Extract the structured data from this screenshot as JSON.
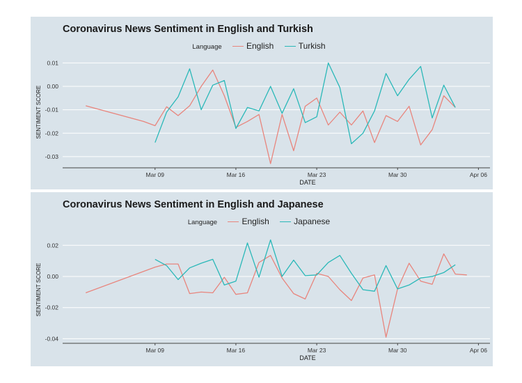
{
  "chart_data": [
    {
      "type": "line",
      "title": "Coronavirus News Sentiment in English and Turkish",
      "legend_title": "Language",
      "xlabel": "DATE",
      "ylabel": "SENTIMENT SCORE",
      "x_ticks": [
        "Mar 09",
        "Mar 16",
        "Mar 23",
        "Mar 30",
        "Apr 06"
      ],
      "y_ticks": [
        "0.01",
        "0.00",
        "-0.01",
        "-0.02",
        "-0.03"
      ],
      "ylim": [
        -0.0345,
        0.0125
      ],
      "xlim": [
        "2020-03-01",
        "2020-04-07"
      ],
      "legend_placement": "top-center",
      "grid": true,
      "series": [
        {
          "name": "English",
          "color": "#e8857d",
          "points": [
            [
              "2020-03-03",
              -0.0083
            ],
            [
              "2020-03-08",
              -0.015
            ],
            [
              "2020-03-09",
              -0.0168
            ],
            [
              "2020-03-10",
              -0.0087
            ],
            [
              "2020-03-11",
              -0.0125
            ],
            [
              "2020-03-12",
              -0.0083
            ],
            [
              "2020-03-13",
              0.0
            ],
            [
              "2020-03-14",
              0.007
            ],
            [
              "2020-03-15",
              -0.004
            ],
            [
              "2020-03-16",
              -0.0175
            ],
            [
              "2020-03-17",
              -0.015
            ],
            [
              "2020-03-18",
              -0.012
            ],
            [
              "2020-03-19",
              -0.033
            ],
            [
              "2020-03-20",
              -0.012
            ],
            [
              "2020-03-21",
              -0.0275
            ],
            [
              "2020-03-22",
              -0.0085
            ],
            [
              "2020-03-23",
              -0.005
            ],
            [
              "2020-03-24",
              -0.0165
            ],
            [
              "2020-03-25",
              -0.011
            ],
            [
              "2020-03-26",
              -0.0165
            ],
            [
              "2020-03-27",
              -0.0105
            ],
            [
              "2020-03-28",
              -0.024
            ],
            [
              "2020-03-29",
              -0.0125
            ],
            [
              "2020-03-30",
              -0.015
            ],
            [
              "2020-03-31",
              -0.0085
            ],
            [
              "2020-04-01",
              -0.025
            ],
            [
              "2020-04-02",
              -0.0185
            ],
            [
              "2020-04-03",
              -0.004
            ],
            [
              "2020-04-04",
              -0.009
            ]
          ]
        },
        {
          "name": "Turkish",
          "color": "#2ab8b8",
          "points": [
            [
              "2020-03-09",
              -0.024
            ],
            [
              "2020-03-10",
              -0.011
            ],
            [
              "2020-03-11",
              -0.0045
            ],
            [
              "2020-03-12",
              0.0075
            ],
            [
              "2020-03-13",
              -0.01
            ],
            [
              "2020-03-14",
              0.0005
            ],
            [
              "2020-03-15",
              0.0025
            ],
            [
              "2020-03-16",
              -0.018
            ],
            [
              "2020-03-17",
              -0.009
            ],
            [
              "2020-03-18",
              -0.0105
            ],
            [
              "2020-03-19",
              0.0
            ],
            [
              "2020-03-20",
              -0.0115
            ],
            [
              "2020-03-21",
              -0.001
            ],
            [
              "2020-03-22",
              -0.0155
            ],
            [
              "2020-03-23",
              -0.013
            ],
            [
              "2020-03-24",
              0.01
            ],
            [
              "2020-03-25",
              -0.0005
            ],
            [
              "2020-03-26",
              -0.0245
            ],
            [
              "2020-03-27",
              -0.02
            ],
            [
              "2020-03-28",
              -0.0105
            ],
            [
              "2020-03-29",
              0.0055
            ],
            [
              "2020-03-30",
              -0.004
            ],
            [
              "2020-03-31",
              0.003
            ],
            [
              "2020-04-01",
              0.0085
            ],
            [
              "2020-04-02",
              -0.0135
            ],
            [
              "2020-04-03",
              0.0005
            ],
            [
              "2020-04-04",
              -0.009
            ]
          ]
        }
      ]
    },
    {
      "type": "line",
      "title": "Coronavirus News Sentiment in English and Japanese",
      "legend_title": "Language",
      "xlabel": "DATE",
      "ylabel": "SENTIMENT SCORE",
      "x_ticks": [
        "Mar 09",
        "Mar 16",
        "Mar 23",
        "Mar 30",
        "Apr 06"
      ],
      "y_ticks": [
        "0.02",
        "0.00",
        "-0.02",
        "-0.04"
      ],
      "ylim": [
        -0.0425,
        0.0255
      ],
      "xlim": [
        "2020-03-01",
        "2020-04-07"
      ],
      "legend_placement": "top-center",
      "grid": true,
      "series": [
        {
          "name": "English",
          "color": "#e8857d",
          "points": [
            [
              "2020-03-03",
              -0.0105
            ],
            [
              "2020-03-09",
              0.006
            ],
            [
              "2020-03-10",
              0.008
            ],
            [
              "2020-03-11",
              0.008
            ],
            [
              "2020-03-12",
              -0.011
            ],
            [
              "2020-03-13",
              -0.01
            ],
            [
              "2020-03-14",
              -0.0105
            ],
            [
              "2020-03-15",
              -0.0005
            ],
            [
              "2020-03-16",
              -0.0115
            ],
            [
              "2020-03-17",
              -0.0105
            ],
            [
              "2020-03-18",
              0.009
            ],
            [
              "2020-03-19",
              0.0135
            ],
            [
              "2020-03-20",
              -0.001
            ],
            [
              "2020-03-21",
              -0.011
            ],
            [
              "2020-03-22",
              -0.0145
            ],
            [
              "2020-03-23",
              0.002
            ],
            [
              "2020-03-24",
              0.0
            ],
            [
              "2020-03-25",
              -0.0085
            ],
            [
              "2020-03-26",
              -0.0155
            ],
            [
              "2020-03-27",
              -0.001
            ],
            [
              "2020-03-28",
              0.001
            ],
            [
              "2020-03-29",
              -0.039
            ],
            [
              "2020-03-30",
              -0.008
            ],
            [
              "2020-03-31",
              0.0085
            ],
            [
              "2020-04-01",
              -0.003
            ],
            [
              "2020-04-02",
              -0.005
            ],
            [
              "2020-04-03",
              0.0145
            ],
            [
              "2020-04-04",
              0.0015
            ],
            [
              "2020-04-05",
              0.001
            ]
          ]
        },
        {
          "name": "Japanese",
          "color": "#2ab8b8",
          "points": [
            [
              "2020-03-09",
              0.011
            ],
            [
              "2020-03-10",
              0.007
            ],
            [
              "2020-03-11",
              -0.002
            ],
            [
              "2020-03-12",
              0.0055
            ],
            [
              "2020-03-13",
              0.0085
            ],
            [
              "2020-03-14",
              0.011
            ],
            [
              "2020-03-15",
              -0.0055
            ],
            [
              "2020-03-16",
              -0.003
            ],
            [
              "2020-03-17",
              0.0215
            ],
            [
              "2020-03-18",
              -0.0005
            ],
            [
              "2020-03-19",
              0.0235
            ],
            [
              "2020-03-20",
              0.0
            ],
            [
              "2020-03-21",
              0.0105
            ],
            [
              "2020-03-22",
              0.0005
            ],
            [
              "2020-03-23",
              0.001
            ],
            [
              "2020-03-24",
              0.009
            ],
            [
              "2020-03-25",
              0.0135
            ],
            [
              "2020-03-26",
              0.002
            ],
            [
              "2020-03-27",
              -0.0085
            ],
            [
              "2020-03-28",
              -0.0095
            ],
            [
              "2020-03-29",
              0.007
            ],
            [
              "2020-03-30",
              -0.008
            ],
            [
              "2020-03-31",
              -0.0055
            ],
            [
              "2020-04-01",
              -0.001
            ],
            [
              "2020-04-02",
              0.0
            ],
            [
              "2020-04-03",
              0.0025
            ],
            [
              "2020-04-04",
              0.0075
            ]
          ]
        }
      ]
    }
  ]
}
